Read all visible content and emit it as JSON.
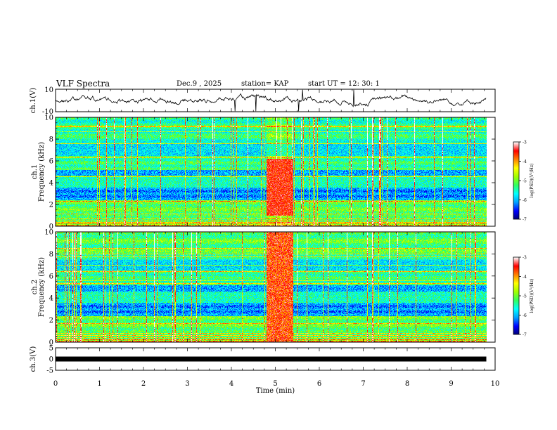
{
  "header": {
    "title": "VLF Spectra",
    "date": "Dec.9 , 2025",
    "station": "station= KAP",
    "start_ut": "start UT = 12: 30: 1"
  },
  "colors": {
    "ink": "#000000",
    "colormap": [
      "#000070",
      "#0000ff",
      "#00a0ff",
      "#00ffff",
      "#30ff60",
      "#a0ff00",
      "#ffff00",
      "#ff8000",
      "#ff0000",
      "#ffffff"
    ]
  },
  "chart_data": [
    {
      "type": "line",
      "id": "ch1-waveform",
      "ylabel": "ch.1(V)",
      "ylim": [
        -10,
        10
      ],
      "yticks": [
        "10",
        "-10"
      ],
      "x_range_min": [
        0,
        10
      ],
      "description_values": "noisy waveform around 0 V"
    },
    {
      "type": "heatmap",
      "id": "ch1-spectrogram",
      "ylabel_line1": "ch.1",
      "ylabel_line2": "Frequency (kHz)",
      "ylim": [
        0,
        10
      ],
      "yticks": [
        "0",
        "2",
        "4",
        "6",
        "8",
        "10"
      ],
      "xlim": [
        0,
        10
      ],
      "burst_window_min": [
        4.8,
        5.4
      ],
      "colorbar": {
        "label": "log(PSD)(V²/Hz)",
        "ticks": [
          "-3",
          "-4",
          "-5",
          "-6",
          "-7"
        ],
        "range": [
          -7,
          -3
        ]
      }
    },
    {
      "type": "heatmap",
      "id": "ch2-spectrogram",
      "ylabel_line1": "ch.2",
      "ylabel_line2": "Frequency (kHz)",
      "ylim": [
        0,
        10
      ],
      "yticks": [
        "0",
        "2",
        "4",
        "6",
        "8",
        "10"
      ],
      "xlim": [
        0,
        10
      ],
      "burst_window_min": [
        4.8,
        5.4
      ],
      "colorbar": {
        "label": "log(PSD)(V²/Hz)",
        "ticks": [
          "-3",
          "-4",
          "-5",
          "-6",
          "-7"
        ],
        "range": [
          -7,
          -3
        ]
      }
    },
    {
      "type": "line",
      "id": "ch3-waveform",
      "ylabel": "ch.3(V)",
      "ylim": [
        -5,
        5
      ],
      "yticks": [
        "5",
        "0",
        "-5"
      ],
      "level": 0
    }
  ],
  "xaxis": {
    "label": "Time (min)",
    "ticks": [
      "0",
      "1",
      "2",
      "3",
      "4",
      "5",
      "6",
      "7",
      "8",
      "9",
      "10"
    ],
    "range": [
      0,
      10
    ],
    "data_end": 9.8
  }
}
